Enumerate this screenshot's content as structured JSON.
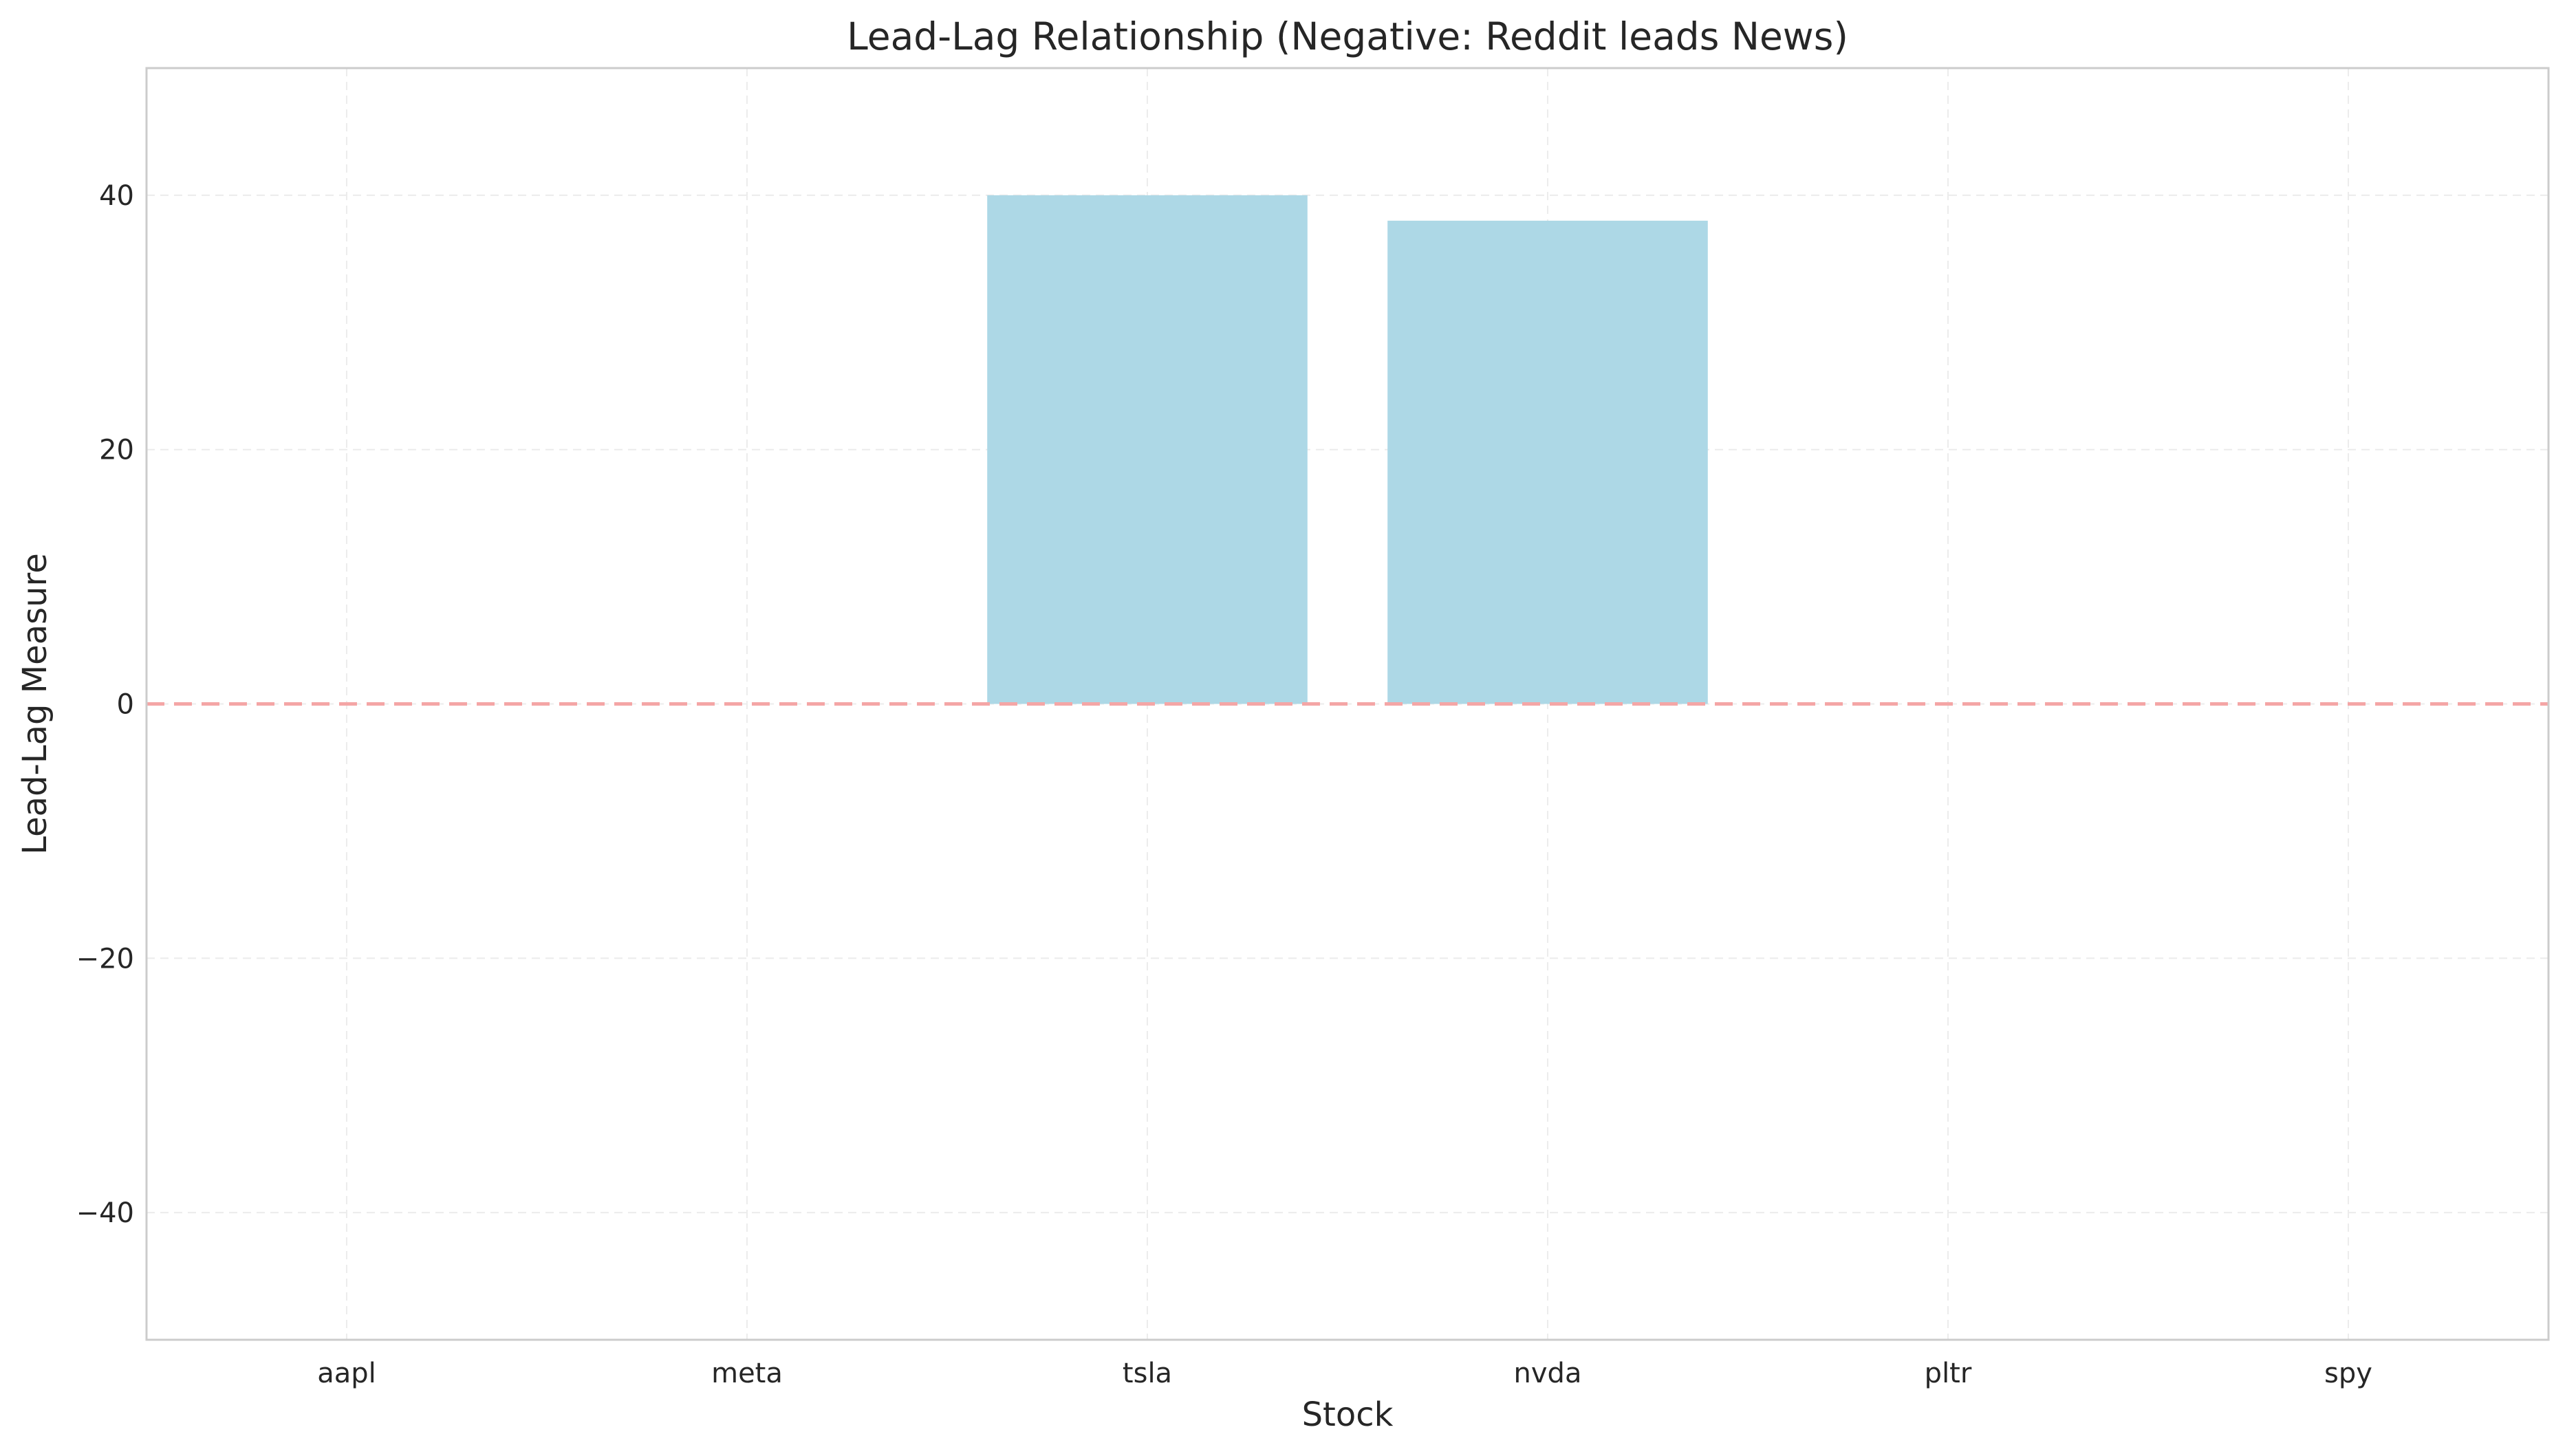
{
  "chart_data": {
    "type": "bar",
    "title": "Lead-Lag Relationship (Negative: Reddit leads News)",
    "xlabel": "Stock",
    "ylabel": "Lead-Lag Measure",
    "categories": [
      "aapl",
      "meta",
      "tsla",
      "nvda",
      "pltr",
      "spy"
    ],
    "values": [
      0,
      0,
      40,
      38,
      0,
      0
    ],
    "ylim": [
      -50,
      50
    ],
    "yticks": [
      -40,
      -20,
      0,
      20,
      40
    ],
    "ytick_labels": [
      "−40",
      "−20",
      "0",
      "20",
      "40"
    ],
    "grid": true,
    "legend": "none",
    "reference_line": {
      "value": 0,
      "style": "dashed",
      "color": "#f4a6a6"
    },
    "colors": {
      "bar": "#add8e6",
      "grid": "#ececec",
      "spine": "#cccccc",
      "text": "#262626"
    }
  }
}
